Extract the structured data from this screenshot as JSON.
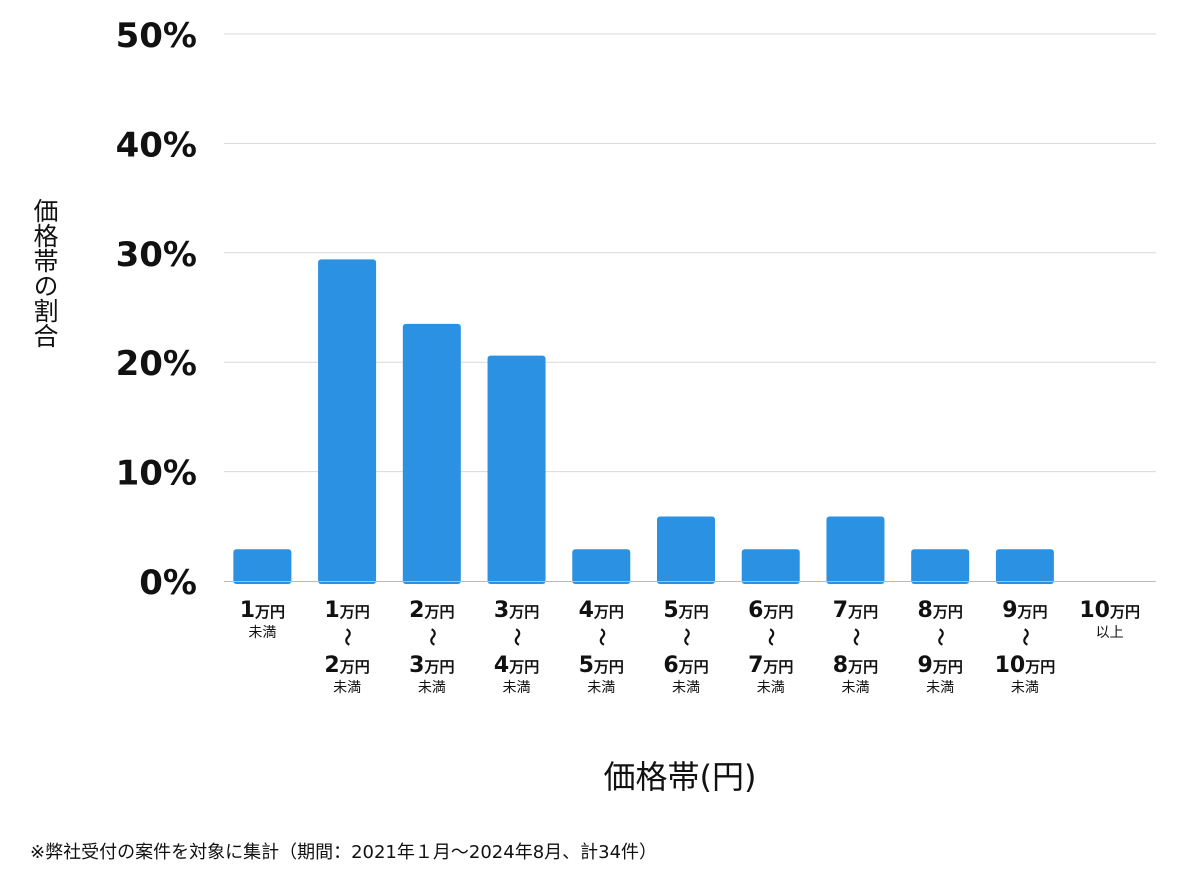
{
  "chart_data": {
    "type": "bar",
    "categories": [
      [
        "1",
        "万円",
        "未満"
      ],
      [
        "1",
        "万円",
        "〜",
        "2",
        "万円",
        "未満"
      ],
      [
        "2",
        "万円",
        "〜",
        "3",
        "万円",
        "未満"
      ],
      [
        "3",
        "万円",
        "〜",
        "4",
        "万円",
        "未満"
      ],
      [
        "4",
        "万円",
        "〜",
        "5",
        "万円",
        "未満"
      ],
      [
        "5",
        "万円",
        "〜",
        "6",
        "万円",
        "未満"
      ],
      [
        "6",
        "万円",
        "〜",
        "7",
        "万円",
        "未満"
      ],
      [
        "7",
        "万円",
        "〜",
        "8",
        "万円",
        "未満"
      ],
      [
        "8",
        "万円",
        "〜",
        "9",
        "万円",
        "未満"
      ],
      [
        "9",
        "万円",
        "〜",
        "10",
        "万円",
        "未満"
      ],
      [
        "10",
        "万円",
        "以上"
      ]
    ],
    "values": [
      2.9,
      29.4,
      23.5,
      20.6,
      2.9,
      5.9,
      2.9,
      5.9,
      2.9,
      2.9,
      0
    ],
    "ylabel": "価格帯の割合",
    "xlabel": "価格帯(円)",
    "yticks": [
      "0%",
      "10%",
      "20%",
      "30%",
      "40%",
      "50%"
    ],
    "ylim": [
      0,
      50
    ],
    "grid": true,
    "bar_color": "#2a91e3",
    "grid_color": "#d9d9d9",
    "axis_color": "#bbbbbb"
  },
  "footnote": "※弊社受付の案件を対象に集計（期間：2021年１月〜2024年8月、計34件）"
}
